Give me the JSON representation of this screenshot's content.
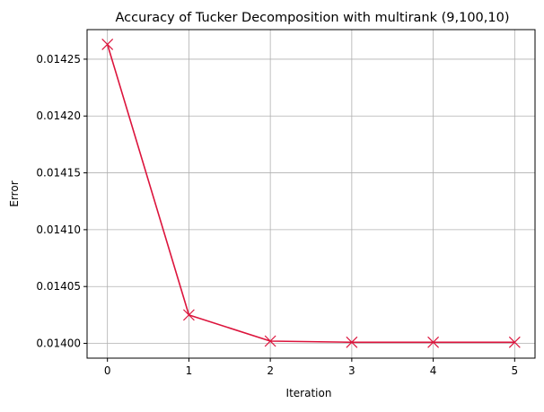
{
  "chart_data": {
    "type": "line",
    "title": "Accuracy of Tucker Decomposition with multirank (9,100,10)",
    "xlabel": "Iteration",
    "ylabel": "Error",
    "x": [
      0,
      1,
      2,
      3,
      4,
      5
    ],
    "series": [
      {
        "values": [
          0.014263,
          0.014025,
          0.014002,
          0.014001,
          0.014001,
          0.014001
        ],
        "color": "#dc143c",
        "marker": "x"
      }
    ],
    "xlim": [
      -0.25,
      5.25
    ],
    "ylim": [
      0.013987,
      0.014276
    ],
    "xticks": [
      0,
      1,
      2,
      3,
      4,
      5
    ],
    "xtick_labels": [
      "0",
      "1",
      "2",
      "3",
      "4",
      "5"
    ],
    "yticks": [
      0.014,
      0.01405,
      0.0141,
      0.01415,
      0.0142,
      0.01425
    ],
    "ytick_labels": [
      "0.01400",
      "0.01405",
      "0.01410",
      "0.01415",
      "0.01420",
      "0.01425"
    ],
    "grid": true,
    "legend": false
  }
}
